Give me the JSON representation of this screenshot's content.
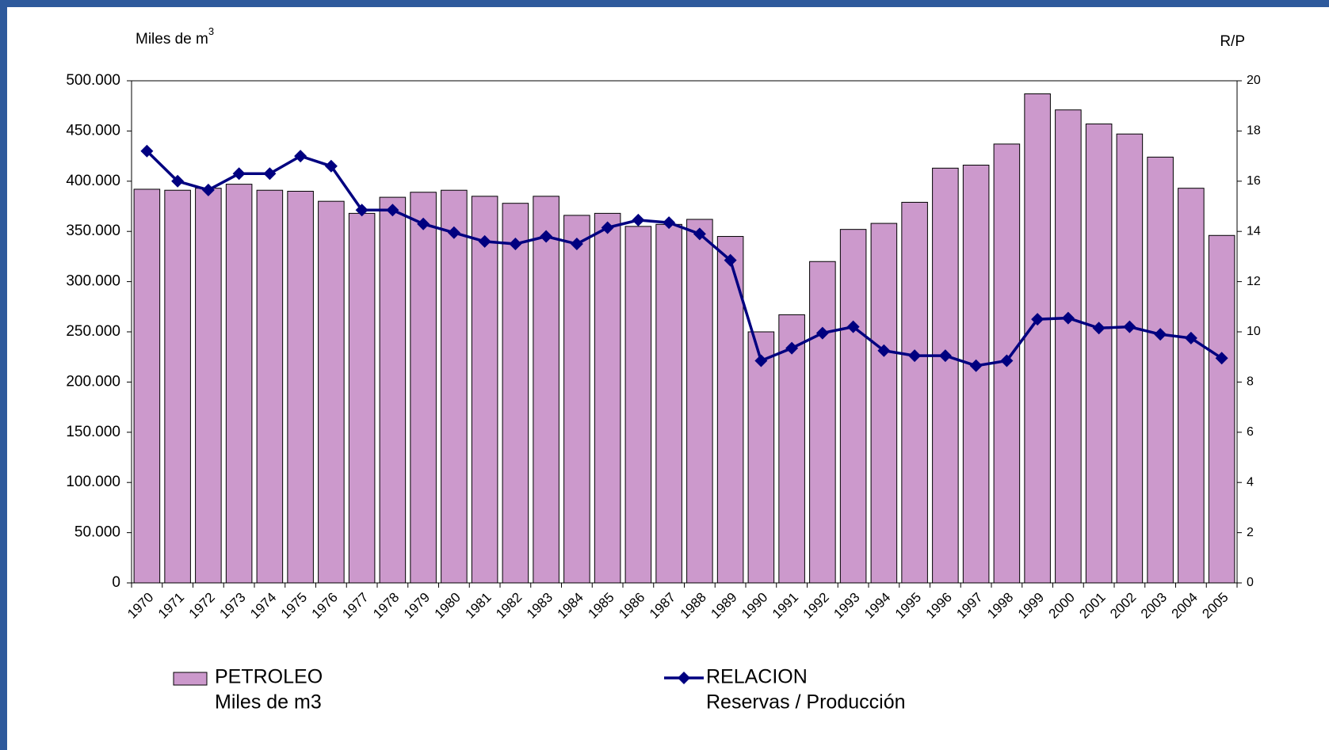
{
  "chart_data": {
    "type": "bar_line",
    "y_title": {
      "text": "Miles de m",
      "sup": "3"
    },
    "y2_title": "R/P",
    "categories": [
      "1970",
      "1971",
      "1972",
      "1973",
      "1974",
      "1975",
      "1976",
      "1977",
      "1978",
      "1979",
      "1980",
      "1981",
      "1982",
      "1983",
      "1984",
      "1985",
      "1986",
      "1987",
      "1988",
      "1989",
      "1990",
      "1991",
      "1992",
      "1993",
      "1994",
      "1995",
      "1996",
      "1997",
      "1998",
      "1999",
      "2000",
      "2001",
      "2002",
      "2003",
      "2004",
      "2005"
    ],
    "series": [
      {
        "name": "PETROLEO",
        "legend_sub": "Miles de m3",
        "type": "bar",
        "color": "#cc99cc",
        "axis": "y",
        "values": [
          392000,
          391000,
          393000,
          397000,
          391000,
          390000,
          380000,
          368000,
          384000,
          389000,
          391000,
          385000,
          378000,
          385000,
          366000,
          368000,
          355000,
          357000,
          362000,
          345000,
          250000,
          267000,
          320000,
          352000,
          358000,
          379000,
          413000,
          416000,
          437000,
          487000,
          471000,
          457000,
          447000,
          424000,
          393000,
          346000
        ]
      },
      {
        "name": "RELACION",
        "legend_sub": "Reservas / Producción",
        "type": "line",
        "color": "#000080",
        "axis": "y2",
        "values": [
          17.2,
          16.0,
          15.65,
          16.3,
          16.3,
          17.0,
          16.6,
          14.85,
          14.85,
          14.3,
          13.95,
          13.6,
          13.5,
          13.8,
          13.5,
          14.15,
          14.45,
          14.35,
          13.9,
          12.85,
          8.85,
          9.35,
          9.95,
          10.2,
          9.25,
          9.05,
          9.05,
          8.65,
          8.85,
          10.5,
          10.55,
          10.15,
          10.2,
          9.9,
          9.75,
          8.95
        ]
      }
    ],
    "ylim": [
      0,
      500000
    ],
    "yticks": [
      0,
      {
        "value": 50000,
        "label": "50.000"
      },
      {
        "value": 100000,
        "label": "100.000"
      },
      {
        "value": 150000,
        "label": "150.000"
      },
      {
        "value": 200000,
        "label": "200.000"
      },
      {
        "value": 250000,
        "label": "250.000"
      },
      {
        "value": 300000,
        "label": "300.000"
      },
      {
        "value": 350000,
        "label": "350.000"
      },
      {
        "value": 400000,
        "label": "400.000"
      },
      {
        "value": 450000,
        "label": "450.000"
      },
      {
        "value": 500000,
        "label": "500.000"
      }
    ],
    "y2lim": [
      0,
      20
    ],
    "y2ticks": [
      0,
      2,
      4,
      6,
      8,
      10,
      12,
      14,
      16,
      18,
      20
    ],
    "grid": false
  }
}
